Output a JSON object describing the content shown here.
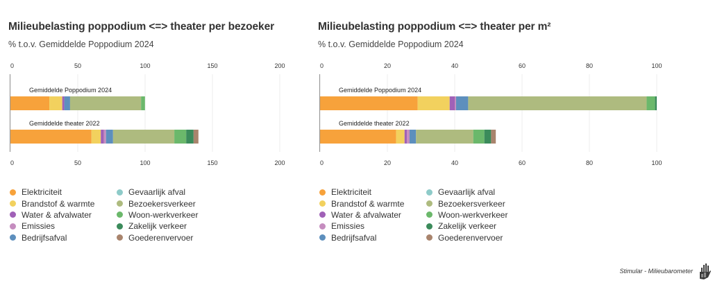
{
  "chart_data": [
    {
      "type": "bar",
      "orientation": "horizontal",
      "stacked": true,
      "title": "Milieubelasting poppodium <=> theater per bezoeker",
      "subtitle": "% t.o.v. Gemiddelde Poppodium 2024",
      "categories": [
        "Gemiddelde Poppodium 2024",
        "Gemiddelde theater 2022"
      ],
      "xlim": [
        0,
        200
      ],
      "xticks": [
        0,
        50,
        100,
        150,
        200
      ],
      "xtick_labels": [
        "0",
        "50",
        "100",
        "150",
        "200"
      ],
      "grid": true,
      "series": [
        {
          "name": "Elektriciteit",
          "color": "#f7a23b",
          "values": [
            28.9,
            60.2
          ]
        },
        {
          "name": "Brandstof & warmte",
          "color": "#f2d15e",
          "values": [
            9.6,
            6.9
          ]
        },
        {
          "name": "Water & afvalwater",
          "color": "#a061b7",
          "values": [
            1.5,
            2.2
          ]
        },
        {
          "name": "Emissies",
          "color": "#c58dbf",
          "values": [
            0,
            1.7
          ]
        },
        {
          "name": "Bedrijfsafval",
          "color": "#5d8fbd",
          "values": [
            4.3,
            5.2
          ]
        },
        {
          "name": "Gevaarlijk afval",
          "color": "#8ecbc9",
          "values": [
            0,
            0
          ]
        },
        {
          "name": "Bezoekersverkeer",
          "color": "#aebb7f",
          "values": [
            52.7,
            45.5
          ]
        },
        {
          "name": "Woon-werkverkeer",
          "color": "#6bb86b",
          "values": [
            2.9,
            8.8
          ]
        },
        {
          "name": "Zakelijk verkeer",
          "color": "#3b8b5b",
          "values": [
            0,
            5.5
          ]
        },
        {
          "name": "Goederenvervoer",
          "color": "#a9846d",
          "values": [
            0,
            3.6
          ]
        }
      ],
      "legend": "bottom-left"
    },
    {
      "type": "bar",
      "orientation": "horizontal",
      "stacked": true,
      "title": "Milieubelasting poppodium <=> theater per m²",
      "subtitle": "% t.o.v. Gemiddelde Poppodium 2024",
      "categories": [
        "Gemiddelde Poppodium 2024",
        "Gemiddelde theater 2022"
      ],
      "xlim": [
        0,
        100
      ],
      "xticks": [
        0,
        20,
        40,
        60,
        80,
        100
      ],
      "xtick_labels": [
        "0",
        "20",
        "40",
        "60",
        "80",
        "100"
      ],
      "grid": true,
      "series": [
        {
          "name": "Elektriciteit",
          "color": "#f7a23b",
          "values": [
            29.0,
            22.6
          ]
        },
        {
          "name": "Brandstof & warmte",
          "color": "#f2d15e",
          "values": [
            9.5,
            2.5
          ]
        },
        {
          "name": "Water & afvalwater",
          "color": "#a061b7",
          "values": [
            1.5,
            0.7
          ]
        },
        {
          "name": "Emissies",
          "color": "#c58dbf",
          "values": [
            0.4,
            0.8
          ]
        },
        {
          "name": "Bedrijfsafval",
          "color": "#5d8fbd",
          "values": [
            3.6,
            1.9
          ]
        },
        {
          "name": "Gevaarlijk afval",
          "color": "#8ecbc9",
          "values": [
            0,
            0
          ]
        },
        {
          "name": "Bezoekersverkeer",
          "color": "#aebb7f",
          "values": [
            53.0,
            17.0
          ]
        },
        {
          "name": "Woon-werkverkeer",
          "color": "#6bb86b",
          "values": [
            2.5,
            3.3
          ]
        },
        {
          "name": "Zakelijk verkeer",
          "color": "#3b8b5b",
          "values": [
            0.5,
            2.0
          ]
        },
        {
          "name": "Goederenvervoer",
          "color": "#a9846d",
          "values": [
            0,
            1.4
          ]
        }
      ],
      "legend": "bottom-left"
    }
  ],
  "footer": {
    "source": "Stimular - Milieubarometer",
    "logo_icon": "hand-chart-icon"
  }
}
